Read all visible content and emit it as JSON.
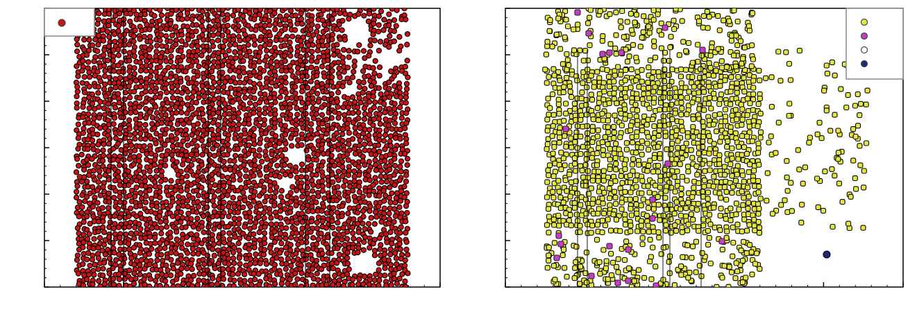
{
  "chart_data": [
    {
      "type": "scatter",
      "title": "",
      "xlabel": "",
      "ylabel": "",
      "xlim": [
        0,
        1000
      ],
      "ylim": [
        0,
        600
      ],
      "grid": false,
      "legend_placement": "top-left",
      "x_ticks": [
        "",
        "",
        "",
        "",
        "",
        ""
      ],
      "y_ticks": [
        "",
        "",
        "",
        "",
        "",
        "",
        ""
      ],
      "series": [
        {
          "color": "#c81414",
          "marker": "circle",
          "density": "dense",
          "x_range": [
            85,
            920
          ],
          "y_range": [
            0,
            600
          ]
        }
      ]
    },
    {
      "type": "scatter",
      "title": "",
      "xlabel": "",
      "ylabel": "",
      "xlim": [
        0,
        1000
      ],
      "ylim": [
        0,
        600
      ],
      "grid": false,
      "legend_placement": "top-right",
      "x_ticks": [
        "",
        "",
        "",
        "",
        "",
        ""
      ],
      "y_ticks": [
        "",
        "",
        "",
        "",
        "",
        "",
        ""
      ],
      "series": [
        {
          "color": "#e6e640",
          "marker": "circle",
          "density": "dense"
        },
        {
          "color": "#c83cc8",
          "marker": "circle",
          "density": "sparse"
        },
        {
          "color": "#ffffff",
          "marker": "circle",
          "density": "none"
        },
        {
          "color": "#1e2878",
          "marker": "circle",
          "density": "single",
          "points": [
            [
              808,
              70
            ]
          ]
        }
      ]
    }
  ]
}
